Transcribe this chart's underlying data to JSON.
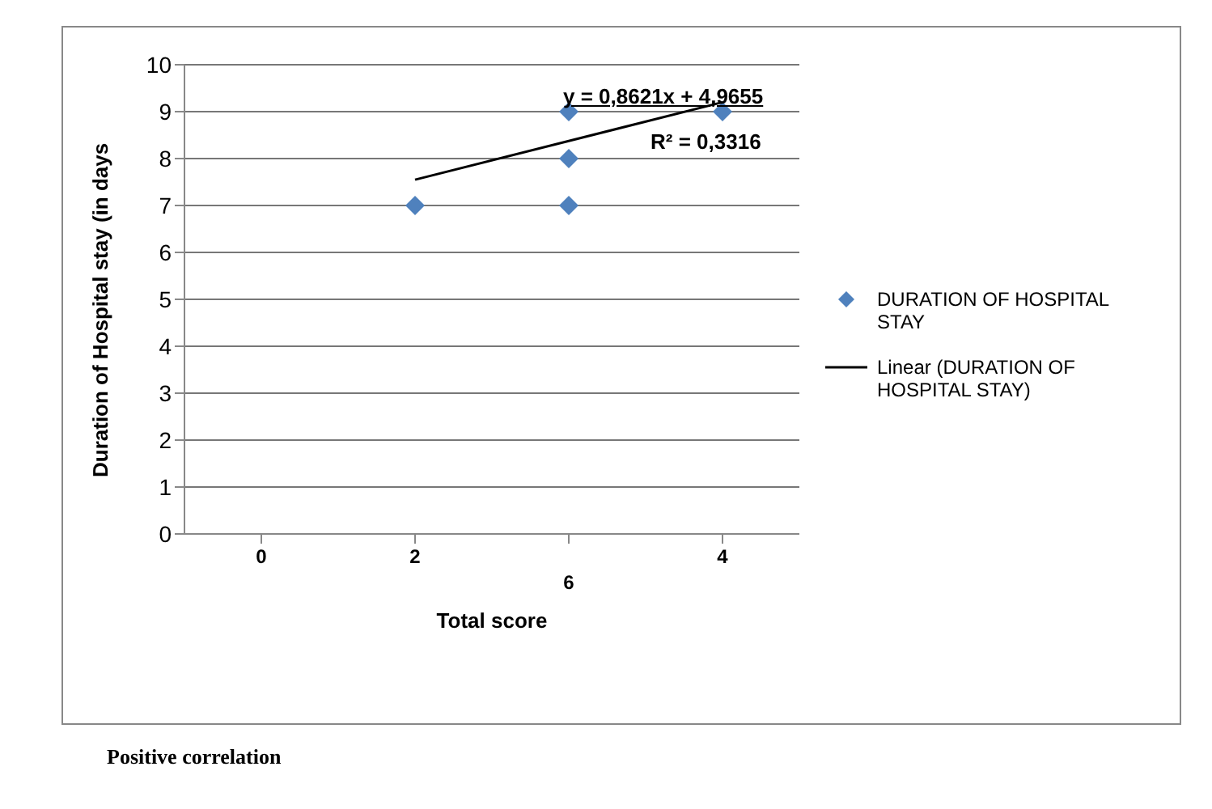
{
  "chart_data": {
    "type": "scatter",
    "xlabel": "Total score",
    "ylabel": "Duration of Hospital stay (in days",
    "categories": [
      "0",
      "2",
      "6",
      "4"
    ],
    "series": [
      {
        "name": "DURATION OF HOSPITAL STAY",
        "color": "#4f81bd",
        "marker": "diamond",
        "x": [
          "2",
          "6",
          "6",
          "6",
          "4"
        ],
        "values": [
          7,
          9,
          8,
          7,
          9
        ]
      },
      {
        "name": "Linear (DURATION OF HOSPITAL STAY)",
        "type": "line",
        "color": "#000000",
        "marker": "none",
        "line_style": "solid",
        "x": [
          "2",
          "4"
        ],
        "values": [
          7.55,
          9.2
        ]
      }
    ],
    "ylim": [
      0,
      10
    ],
    "yticks": [
      0,
      1,
      2,
      3,
      4,
      5,
      6,
      7,
      8,
      9,
      10
    ],
    "grid": "y",
    "legend": "right",
    "annotations": [
      "y = 0,8621x + 4,9655",
      "R² = 0,3316",
      "Positive correlation"
    ]
  }
}
